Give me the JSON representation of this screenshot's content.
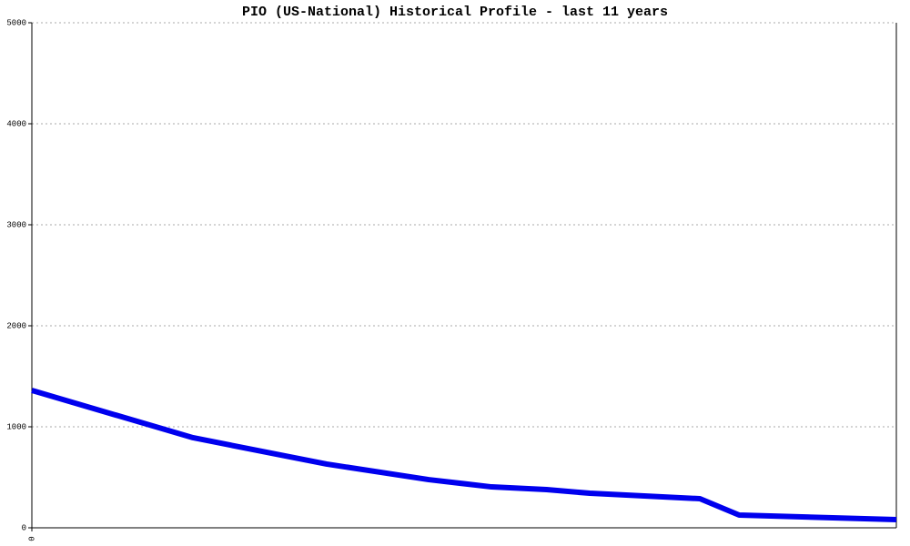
{
  "chart_data": {
    "type": "line",
    "title": "PIO (US-National) Historical Profile - last 11 years",
    "x": [
      0,
      2.05,
      3.75,
      5.05,
      5.85,
      6.55,
      7.1,
      8.5,
      9,
      9.8,
      11
    ],
    "series": [
      {
        "color": "#0000ee",
        "values": [
          1360,
          892,
          631,
          477,
          405,
          378,
          342,
          288,
          126,
          108,
          81
        ]
      }
    ],
    "xlim": [
      0,
      11
    ],
    "xticks": [
      0
    ],
    "ylim": [
      0,
      5000
    ],
    "yticks": [
      0,
      1000,
      2000,
      3000,
      4000,
      5000
    ],
    "grid": true
  }
}
